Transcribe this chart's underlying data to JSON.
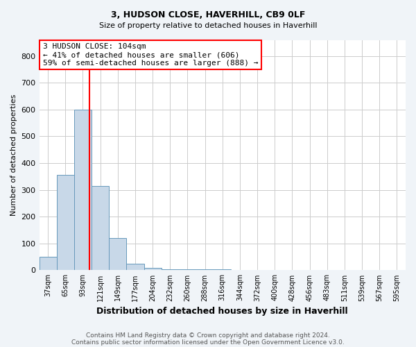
{
  "title": "3, HUDSON CLOSE, HAVERHILL, CB9 0LF",
  "subtitle": "Size of property relative to detached houses in Haverhill",
  "xlabel": "Distribution of detached houses by size in Haverhill",
  "ylabel": "Number of detached properties",
  "footnote1": "Contains HM Land Registry data © Crown copyright and database right 2024.",
  "footnote2": "Contains public sector information licensed under the Open Government Licence v3.0.",
  "bin_labels": [
    "37sqm",
    "65sqm",
    "93sqm",
    "121sqm",
    "149sqm",
    "177sqm",
    "204sqm",
    "232sqm",
    "260sqm",
    "288sqm",
    "316sqm",
    "344sqm",
    "372sqm",
    "400sqm",
    "428sqm",
    "456sqm",
    "483sqm",
    "511sqm",
    "539sqm",
    "567sqm",
    "595sqm"
  ],
  "bin_values": [
    50,
    355,
    600,
    315,
    120,
    25,
    8,
    5,
    5,
    5,
    5,
    0,
    0,
    0,
    0,
    0,
    0,
    0,
    0,
    0,
    0
  ],
  "bar_color": "#c8d8e8",
  "bar_edge_color": "#6699bb",
  "annotation_line1": "3 HUDSON CLOSE: 104sqm",
  "annotation_line2": "← 41% of detached houses are smaller (606)",
  "annotation_line3": "59% of semi-detached houses are larger (888) →",
  "annotation_box_color": "white",
  "annotation_box_edge": "red",
  "ylim": [
    0,
    860
  ],
  "yticks": [
    0,
    100,
    200,
    300,
    400,
    500,
    600,
    700,
    800
  ],
  "red_line_x": 2.39,
  "background_color": "#f0f4f8",
  "plot_background": "white",
  "grid_color": "#cccccc",
  "title_fontsize": 9,
  "subtitle_fontsize": 8,
  "ylabel_fontsize": 8,
  "xlabel_fontsize": 9,
  "tick_fontsize": 7,
  "annotation_fontsize": 8,
  "footnote_fontsize": 6.5
}
